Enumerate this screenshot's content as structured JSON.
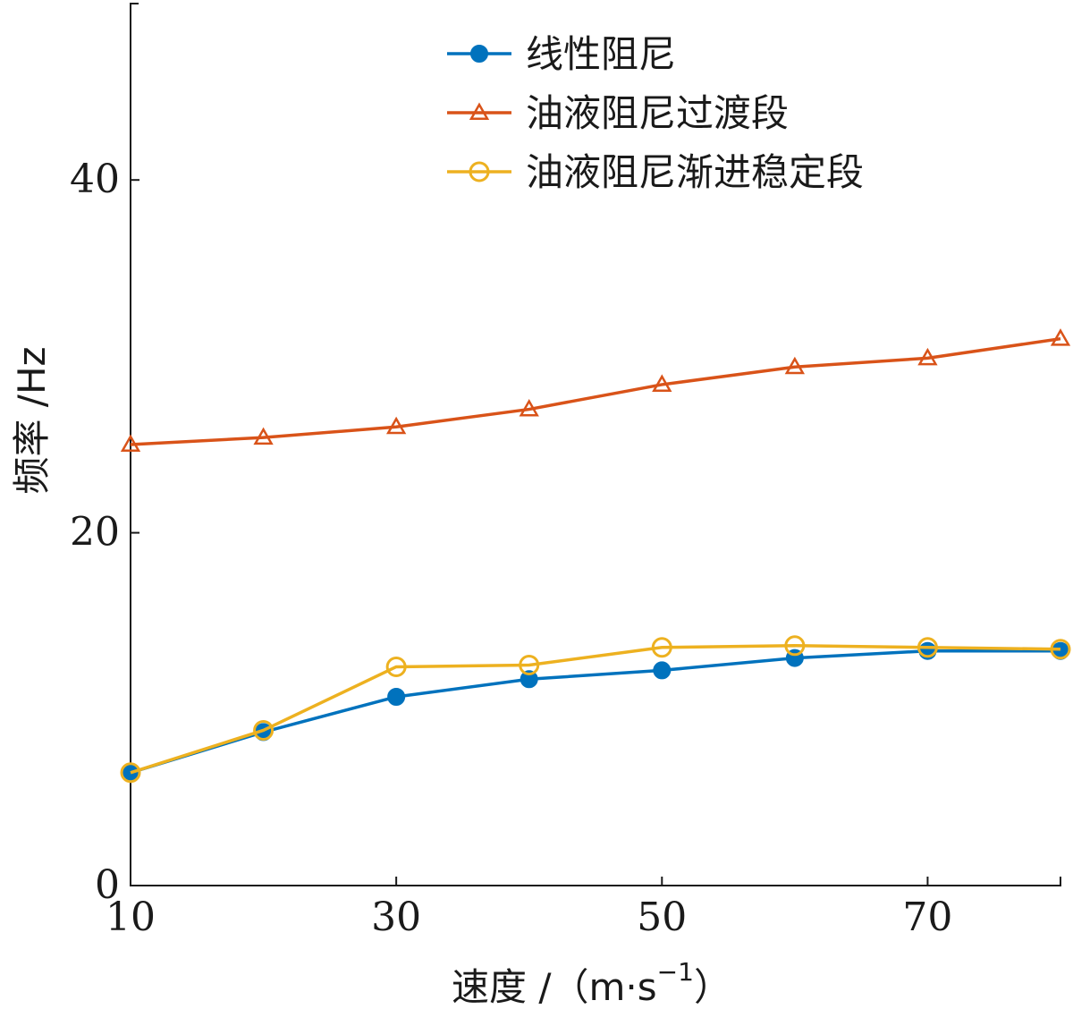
{
  "chart_data": {
    "type": "line",
    "xlabel": "速度 /（m·s",
    "xlabel_sup": "−1",
    "xlabel_close": "）",
    "ylabel": "频率 /Hz",
    "xlim": [
      10,
      80
    ],
    "ylim": [
      0,
      50
    ],
    "xticks": [
      10,
      30,
      50,
      70
    ],
    "yticks": [
      0,
      20,
      40
    ],
    "x": [
      10,
      20,
      30,
      40,
      50,
      60,
      70,
      80
    ],
    "legend_position": "top-right",
    "series": [
      {
        "name": "线性阻尼",
        "color": "#0072BD",
        "marker": "filled-circle",
        "values": [
          6.4,
          8.7,
          10.7,
          11.7,
          12.2,
          12.9,
          13.3,
          13.3
        ]
      },
      {
        "name": "油液阻尼过渡段",
        "color": "#D95319",
        "marker": "open-triangle",
        "values": [
          25.0,
          25.4,
          26.0,
          27.0,
          28.4,
          29.4,
          29.9,
          31.0
        ]
      },
      {
        "name": "油液阻尼渐进稳定段",
        "color": "#EDB120",
        "marker": "open-circle",
        "values": [
          6.4,
          8.8,
          12.4,
          12.5,
          13.5,
          13.6,
          13.5,
          13.4
        ]
      }
    ]
  }
}
